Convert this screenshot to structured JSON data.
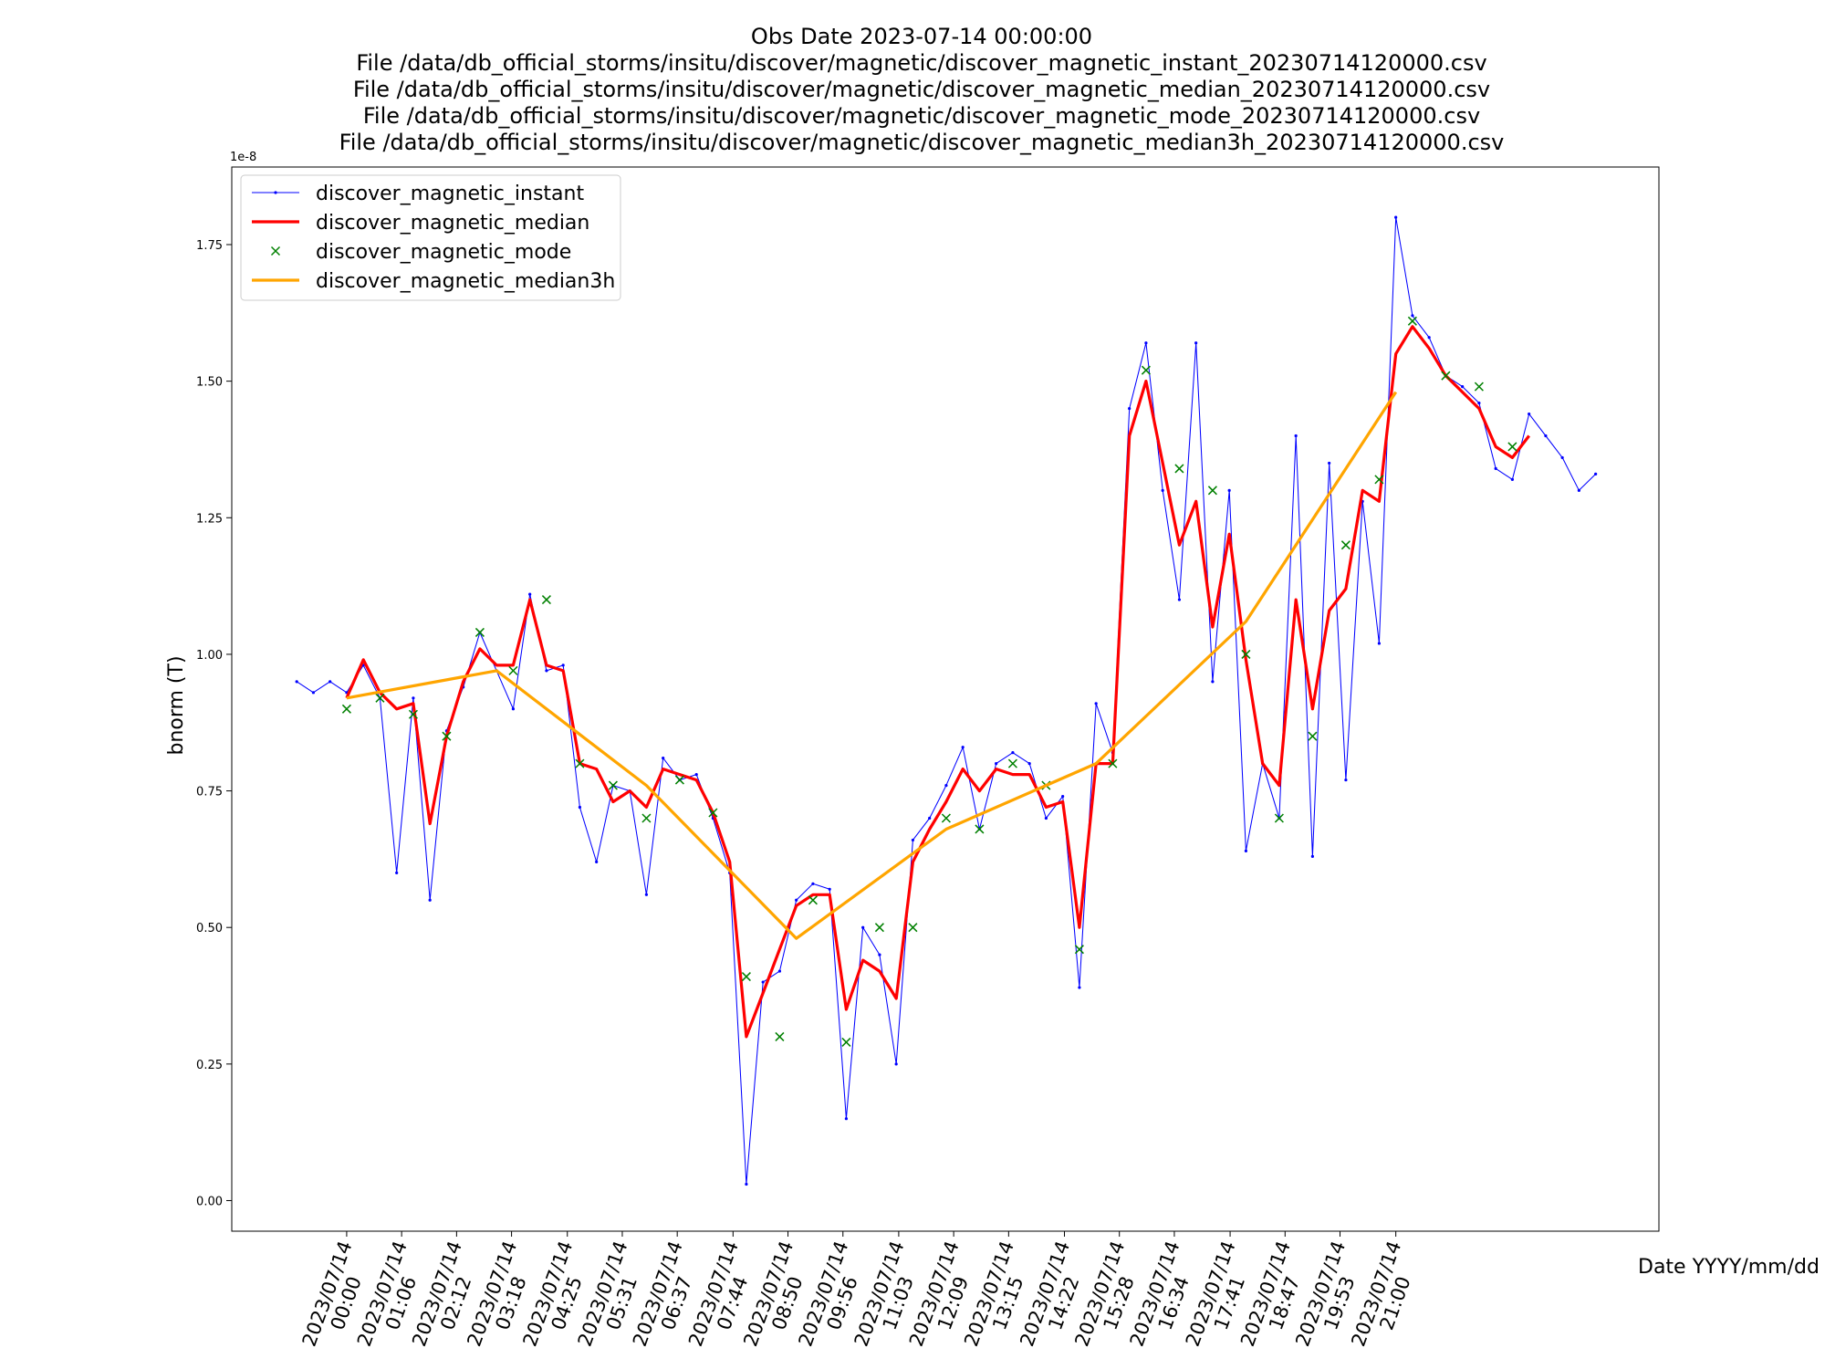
{
  "chart_data": {
    "type": "line",
    "title": [
      "Obs Date 2023-07-14 00:00:00",
      "File /data/db_official_storms/insitu/discover/magnetic/discover_magnetic_instant_20230714120000.csv",
      "File /data/db_official_storms/insitu/discover/magnetic/discover_magnetic_median_20230714120000.csv",
      "File /data/db_official_storms/insitu/discover/magnetic/discover_magnetic_mode_20230714120000.csv",
      "File /data/db_official_storms/insitu/discover/magnetic/discover_magnetic_median3h_20230714120000.csv"
    ],
    "x_label": "Date YYYY/mm/dd",
    "y_label": "bnorm (T)",
    "y_offset_label": "1e-8",
    "legend": "upper left",
    "grid": false,
    "xlim": [
      "2023-07-13T21:42",
      "2023-07-15T02:16"
    ],
    "ylim": [
      -0.056,
      1.892
    ],
    "yticks": [
      {
        "value": 0,
        "label": "0.00"
      },
      0.25,
      {
        "value": 0.5,
        "label": "0.50"
      },
      0.75,
      {
        "value": 1,
        "label": "1.00"
      },
      1.25,
      {
        "value": 1.5,
        "label": "1.50"
      },
      1.75
    ],
    "xticks": [
      {
        "value": "2023-07-14T00:00",
        "label": [
          "2023/07/14",
          "00:00"
        ]
      },
      {
        "value": "2023-07-14T01:06",
        "label": [
          "2023/07/14",
          "01:06"
        ]
      },
      {
        "value": "2023-07-14T02:12",
        "label": [
          "2023/07/14",
          "02:12"
        ]
      },
      {
        "value": "2023-07-14T03:18",
        "label": [
          "2023/07/14",
          "03:18"
        ]
      },
      {
        "value": "2023-07-14T04:25",
        "label": [
          "2023/07/14",
          "04:25"
        ]
      },
      {
        "value": "2023-07-14T05:31",
        "label": [
          "2023/07/14",
          "05:31"
        ]
      },
      {
        "value": "2023-07-14T06:37",
        "label": [
          "2023/07/14",
          "06:37"
        ]
      },
      {
        "value": "2023-07-14T07:44",
        "label": [
          "2023/07/14",
          "07:44"
        ]
      },
      {
        "value": "2023-07-14T08:50",
        "label": [
          "2023/07/14",
          "08:50"
        ]
      },
      {
        "value": "2023-07-14T09:56",
        "label": [
          "2023/07/14",
          "09:56"
        ]
      },
      {
        "value": "2023-07-14T11:03",
        "label": [
          "2023/07/14",
          "11:03"
        ]
      },
      {
        "value": "2023-07-14T12:09",
        "label": [
          "2023/07/14",
          "12:09"
        ]
      },
      {
        "value": "2023-07-14T13:15",
        "label": [
          "2023/07/14",
          "13:15"
        ]
      },
      {
        "value": "2023-07-14T14:22",
        "label": [
          "2023/07/14",
          "14:22"
        ]
      },
      {
        "value": "2023-07-14T15:28",
        "label": [
          "2023/07/14",
          "15:28"
        ]
      },
      {
        "value": "2023-07-14T16:34",
        "label": [
          "2023/07/14",
          "16:34"
        ]
      },
      {
        "value": "2023-07-14T17:41",
        "label": [
          "2023/07/14",
          "17:41"
        ]
      },
      {
        "value": "2023-07-14T18:47",
        "label": [
          "2023/07/14",
          "18:47"
        ]
      },
      {
        "value": "2023-07-14T19:53",
        "label": [
          "2023/07/14",
          "19:53"
        ]
      },
      {
        "value": "2023-07-14T21:00",
        "label": [
          "2023/07/14",
          "21:00"
        ]
      }
    ],
    "series": [
      {
        "name": "discover_magnetic_instant",
        "color": "#0000ff",
        "linestyle": "solid",
        "linewidth": 0.8,
        "marker": "dot",
        "x": [
          "2023-07-13T23:00",
          "2023-07-13T23:20",
          "2023-07-13T23:40",
          "2023-07-14T00:00",
          "2023-07-14T00:20",
          "2023-07-14T00:40",
          "2023-07-14T01:00",
          "2023-07-14T01:20",
          "2023-07-14T01:40",
          "2023-07-14T02:00",
          "2023-07-14T02:20",
          "2023-07-14T02:40",
          "2023-07-14T03:00",
          "2023-07-14T03:20",
          "2023-07-14T03:40",
          "2023-07-14T04:00",
          "2023-07-14T04:20",
          "2023-07-14T04:40",
          "2023-07-14T05:00",
          "2023-07-14T05:20",
          "2023-07-14T05:40",
          "2023-07-14T06:00",
          "2023-07-14T06:20",
          "2023-07-14T06:40",
          "2023-07-14T07:00",
          "2023-07-14T07:20",
          "2023-07-14T07:40",
          "2023-07-14T08:00",
          "2023-07-14T08:20",
          "2023-07-14T08:40",
          "2023-07-14T09:00",
          "2023-07-14T09:20",
          "2023-07-14T09:40",
          "2023-07-14T10:00",
          "2023-07-14T10:20",
          "2023-07-14T10:40",
          "2023-07-14T11:00",
          "2023-07-14T11:20",
          "2023-07-14T11:40",
          "2023-07-14T12:00",
          "2023-07-14T12:20",
          "2023-07-14T12:40",
          "2023-07-14T13:00",
          "2023-07-14T13:20",
          "2023-07-14T13:40",
          "2023-07-14T14:00",
          "2023-07-14T14:20",
          "2023-07-14T14:40",
          "2023-07-14T15:00",
          "2023-07-14T15:20",
          "2023-07-14T15:40",
          "2023-07-14T16:00",
          "2023-07-14T16:20",
          "2023-07-14T16:40",
          "2023-07-14T17:00",
          "2023-07-14T17:20",
          "2023-07-14T17:40",
          "2023-07-14T18:00",
          "2023-07-14T18:20",
          "2023-07-14T18:40",
          "2023-07-14T19:00",
          "2023-07-14T19:20",
          "2023-07-14T19:40",
          "2023-07-14T20:00",
          "2023-07-14T20:20",
          "2023-07-14T20:40",
          "2023-07-14T21:00",
          "2023-07-14T21:20",
          "2023-07-14T21:40",
          "2023-07-14T22:00",
          "2023-07-14T22:20",
          "2023-07-14T22:40",
          "2023-07-14T23:00",
          "2023-07-14T23:20",
          "2023-07-14T23:40",
          "2023-07-15T00:00",
          "2023-07-15T00:20",
          "2023-07-15T00:40",
          "2023-07-15T01:00"
        ],
        "values": [
          0.95,
          0.93,
          0.95,
          0.93,
          0.98,
          0.92,
          0.6,
          0.92,
          0.55,
          0.86,
          0.94,
          1.04,
          0.97,
          0.9,
          1.11,
          0.97,
          0.98,
          0.72,
          0.62,
          0.76,
          0.75,
          0.56,
          0.81,
          0.77,
          0.78,
          0.7,
          0.6,
          0.03,
          0.4,
          0.42,
          0.55,
          0.58,
          0.57,
          0.15,
          0.5,
          0.45,
          0.25,
          0.66,
          0.7,
          0.76,
          0.83,
          0.68,
          0.8,
          0.82,
          0.8,
          0.7,
          0.74,
          0.39,
          0.91,
          0.82,
          1.45,
          1.57,
          1.3,
          1.1,
          1.57,
          0.95,
          1.3,
          0.64,
          0.8,
          0.7,
          1.4,
          0.63,
          1.35,
          0.77,
          1.28,
          1.02,
          1.8,
          1.62,
          1.58,
          1.51,
          1.49,
          1.46,
          1.34,
          1.32,
          1.44,
          1.4,
          1.36,
          1.3,
          1.33
        ]
      },
      {
        "name": "discover_magnetic_median",
        "color": "#ff0000",
        "linestyle": "solid",
        "linewidth": 2.5,
        "marker": "none",
        "x": [
          "2023-07-14T00:00",
          "2023-07-14T00:20",
          "2023-07-14T00:40",
          "2023-07-14T01:00",
          "2023-07-14T01:20",
          "2023-07-14T01:40",
          "2023-07-14T02:00",
          "2023-07-14T02:20",
          "2023-07-14T02:40",
          "2023-07-14T03:00",
          "2023-07-14T03:20",
          "2023-07-14T03:40",
          "2023-07-14T04:00",
          "2023-07-14T04:20",
          "2023-07-14T04:40",
          "2023-07-14T05:00",
          "2023-07-14T05:20",
          "2023-07-14T05:40",
          "2023-07-14T06:00",
          "2023-07-14T06:20",
          "2023-07-14T06:40",
          "2023-07-14T07:00",
          "2023-07-14T07:20",
          "2023-07-14T07:40",
          "2023-07-14T08:00",
          "2023-07-14T08:20",
          "2023-07-14T08:40",
          "2023-07-14T09:00",
          "2023-07-14T09:20",
          "2023-07-14T09:40",
          "2023-07-14T10:00",
          "2023-07-14T10:20",
          "2023-07-14T10:40",
          "2023-07-14T11:00",
          "2023-07-14T11:20",
          "2023-07-14T11:40",
          "2023-07-14T12:00",
          "2023-07-14T12:20",
          "2023-07-14T12:40",
          "2023-07-14T13:00",
          "2023-07-14T13:20",
          "2023-07-14T13:40",
          "2023-07-14T14:00",
          "2023-07-14T14:20",
          "2023-07-14T14:40",
          "2023-07-14T15:00",
          "2023-07-14T15:20",
          "2023-07-14T15:40",
          "2023-07-14T16:00",
          "2023-07-14T16:20",
          "2023-07-14T16:40",
          "2023-07-14T17:00",
          "2023-07-14T17:20",
          "2023-07-14T17:40",
          "2023-07-14T18:00",
          "2023-07-14T18:20",
          "2023-07-14T18:40",
          "2023-07-14T19:00",
          "2023-07-14T19:20",
          "2023-07-14T19:40",
          "2023-07-14T20:00",
          "2023-07-14T20:20",
          "2023-07-14T20:40",
          "2023-07-14T21:00",
          "2023-07-14T21:20",
          "2023-07-14T21:40",
          "2023-07-14T22:00",
          "2023-07-14T22:20",
          "2023-07-14T22:40",
          "2023-07-14T23:00",
          "2023-07-14T23:20",
          "2023-07-14T23:40"
        ],
        "values": [
          0.92,
          0.99,
          0.93,
          0.9,
          0.91,
          0.69,
          0.85,
          0.95,
          1.01,
          0.98,
          0.98,
          1.1,
          0.98,
          0.97,
          0.8,
          0.79,
          0.73,
          0.75,
          0.72,
          0.79,
          0.78,
          0.77,
          0.71,
          0.62,
          0.3,
          0.38,
          0.46,
          0.54,
          0.56,
          0.56,
          0.35,
          0.44,
          0.42,
          0.37,
          0.62,
          0.68,
          0.73,
          0.79,
          0.75,
          0.79,
          0.78,
          0.78,
          0.72,
          0.73,
          0.5,
          0.8,
          0.8,
          1.4,
          1.5,
          1.35,
          1.2,
          1.28,
          1.05,
          1.22,
          0.99,
          0.8,
          0.76,
          1.1,
          0.9,
          1.08,
          1.12,
          1.3,
          1.28,
          1.55,
          1.6,
          1.56,
          1.51,
          1.48,
          1.45,
          1.38,
          1.36,
          1.4
        ]
      },
      {
        "name": "discover_magnetic_mode",
        "color": "#008000",
        "linestyle": "none",
        "linewidth": 1.2,
        "marker": "x",
        "x": [
          "2023-07-14T00:00",
          "2023-07-14T00:40",
          "2023-07-14T01:20",
          "2023-07-14T02:00",
          "2023-07-14T02:40",
          "2023-07-14T03:20",
          "2023-07-14T04:00",
          "2023-07-14T04:40",
          "2023-07-14T05:20",
          "2023-07-14T06:00",
          "2023-07-14T06:40",
          "2023-07-14T07:20",
          "2023-07-14T08:00",
          "2023-07-14T08:40",
          "2023-07-14T09:20",
          "2023-07-14T10:00",
          "2023-07-14T10:40",
          "2023-07-14T11:20",
          "2023-07-14T12:00",
          "2023-07-14T12:40",
          "2023-07-14T13:20",
          "2023-07-14T14:00",
          "2023-07-14T14:40",
          "2023-07-14T15:20",
          "2023-07-14T16:00",
          "2023-07-14T16:40",
          "2023-07-14T17:20",
          "2023-07-14T18:00",
          "2023-07-14T18:40",
          "2023-07-14T19:20",
          "2023-07-14T20:00",
          "2023-07-14T20:40",
          "2023-07-14T21:20",
          "2023-07-14T22:00",
          "2023-07-14T22:40",
          "2023-07-14T23:20"
        ],
        "values": [
          0.9,
          0.92,
          0.89,
          0.85,
          1.04,
          0.97,
          1.1,
          0.8,
          0.76,
          0.7,
          0.77,
          0.71,
          0.41,
          0.3,
          0.55,
          0.29,
          0.5,
          0.5,
          0.7,
          0.68,
          0.8,
          0.76,
          0.46,
          0.8,
          1.52,
          1.34,
          1.3,
          1.0,
          0.7,
          0.85,
          1.2,
          1.32,
          1.61,
          1.51,
          1.49,
          1.38
        ]
      },
      {
        "name": "discover_magnetic_median3h",
        "color": "#ffa500",
        "linestyle": "solid",
        "linewidth": 2.5,
        "marker": "none",
        "x": [
          "2023-07-14T00:00",
          "2023-07-14T03:00",
          "2023-07-14T06:00",
          "2023-07-14T09:00",
          "2023-07-14T12:00",
          "2023-07-14T15:00",
          "2023-07-14T18:00",
          "2023-07-14T21:00"
        ],
        "values": [
          0.92,
          0.97,
          0.76,
          0.48,
          0.68,
          0.8,
          1.06,
          1.48
        ]
      }
    ]
  }
}
